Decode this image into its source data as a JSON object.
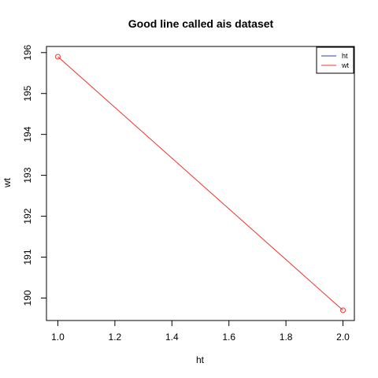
{
  "chart_data": {
    "type": "line",
    "title": "Good line called ais dataset",
    "xlabel": "ht",
    "ylabel": "wt",
    "x": [
      1.0,
      2.0
    ],
    "series": [
      {
        "name": "wt",
        "values": [
          195.9,
          189.7
        ],
        "color": "#e8382f"
      }
    ],
    "legend": [
      {
        "label": "ht",
        "color": "#2c3fa8"
      },
      {
        "label": "wt",
        "color": "#e8382f"
      }
    ],
    "legend_position": "top-right",
    "xlim": [
      0.96,
      2.04
    ],
    "ylim": [
      189.45,
      196.15
    ],
    "xticks": [
      1.0,
      1.2,
      1.4,
      1.6,
      1.8,
      2.0
    ],
    "xtick_labels": [
      "1.0",
      "1.2",
      "1.4",
      "1.6",
      "1.8",
      "2.0"
    ],
    "yticks": [
      190,
      191,
      192,
      193,
      194,
      195,
      196
    ],
    "ytick_labels": [
      "190",
      "191",
      "192",
      "193",
      "194",
      "195",
      "196"
    ],
    "grid": false
  }
}
